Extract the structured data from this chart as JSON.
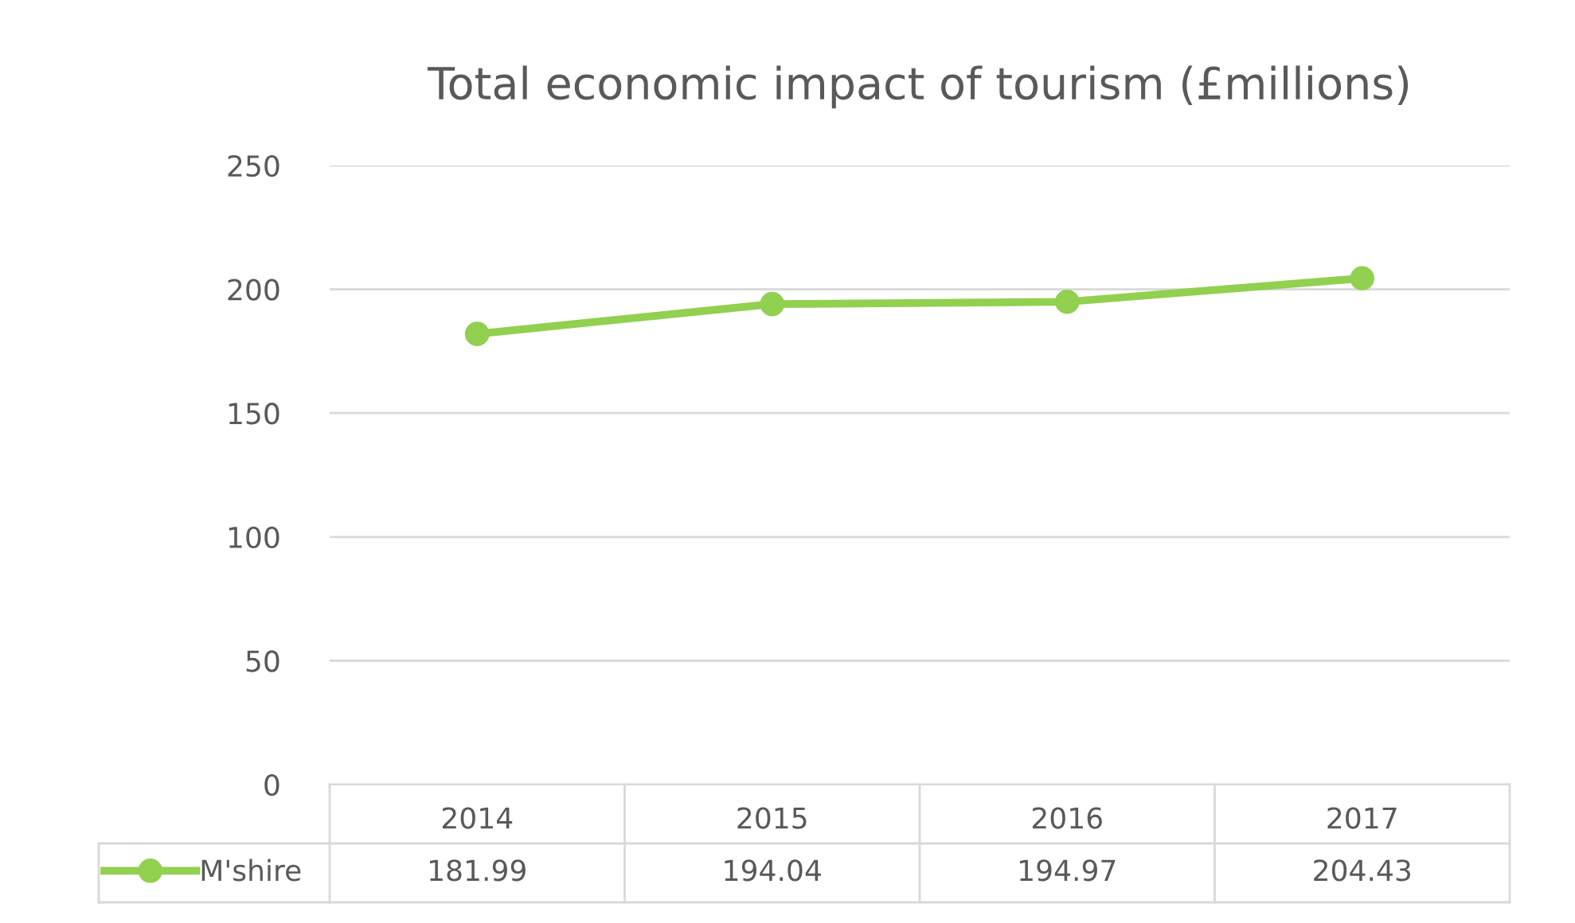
{
  "chart_data": {
    "type": "line",
    "title": "Total economic impact of tourism (£millions)",
    "categories": [
      "2014",
      "2015",
      "2016",
      "2017"
    ],
    "series": [
      {
        "name": "M'shire",
        "color": "#92d050",
        "values": [
          181.99,
          194.04,
          194.97,
          204.43
        ]
      }
    ],
    "ylim": [
      0,
      250
    ],
    "yticks": [
      0,
      50,
      100,
      150,
      200,
      250
    ],
    "grid": "y",
    "marker": "circle",
    "line_style": "solid",
    "data_labels": true,
    "legend": "bottom left"
  }
}
